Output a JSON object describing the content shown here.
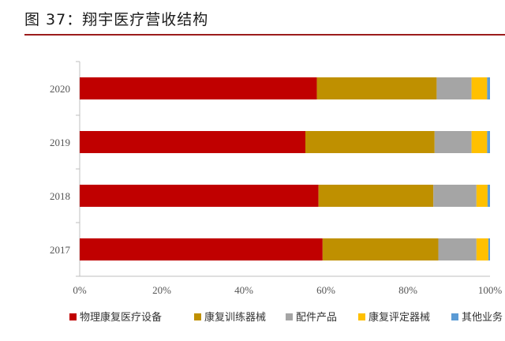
{
  "figure": {
    "title": "图 37：翔宇医疗营收结构"
  },
  "colors": {
    "title_rule": "#9b1c1c",
    "axis": "#bfbfbf"
  },
  "chart_data": {
    "type": "bar",
    "orientation": "horizontal",
    "stacked": true,
    "percent": true,
    "categories": [
      "2020",
      "2019",
      "2018",
      "2017"
    ],
    "xlim": [
      0,
      100
    ],
    "xticks": [
      "0%",
      "20%",
      "40%",
      "60%",
      "80%",
      "100%"
    ],
    "grid": false,
    "legend_position": "bottom",
    "series": [
      {
        "name": "物理康复医疗设备",
        "color": "#c00000",
        "values": [
          57.8,
          55.0,
          58.2,
          59.2
        ]
      },
      {
        "name": "康复训练器械",
        "color": "#bf9000",
        "values": [
          29.2,
          31.5,
          28.0,
          28.2
        ]
      },
      {
        "name": "配件产品",
        "color": "#a5a5a5",
        "values": [
          8.5,
          9.0,
          10.5,
          9.3
        ]
      },
      {
        "name": "康复评定器械",
        "color": "#ffc000",
        "values": [
          3.8,
          3.8,
          2.7,
          2.9
        ]
      },
      {
        "name": "其他业务",
        "color": "#5b9bd5",
        "values": [
          0.7,
          0.7,
          0.6,
          0.4
        ]
      }
    ]
  }
}
